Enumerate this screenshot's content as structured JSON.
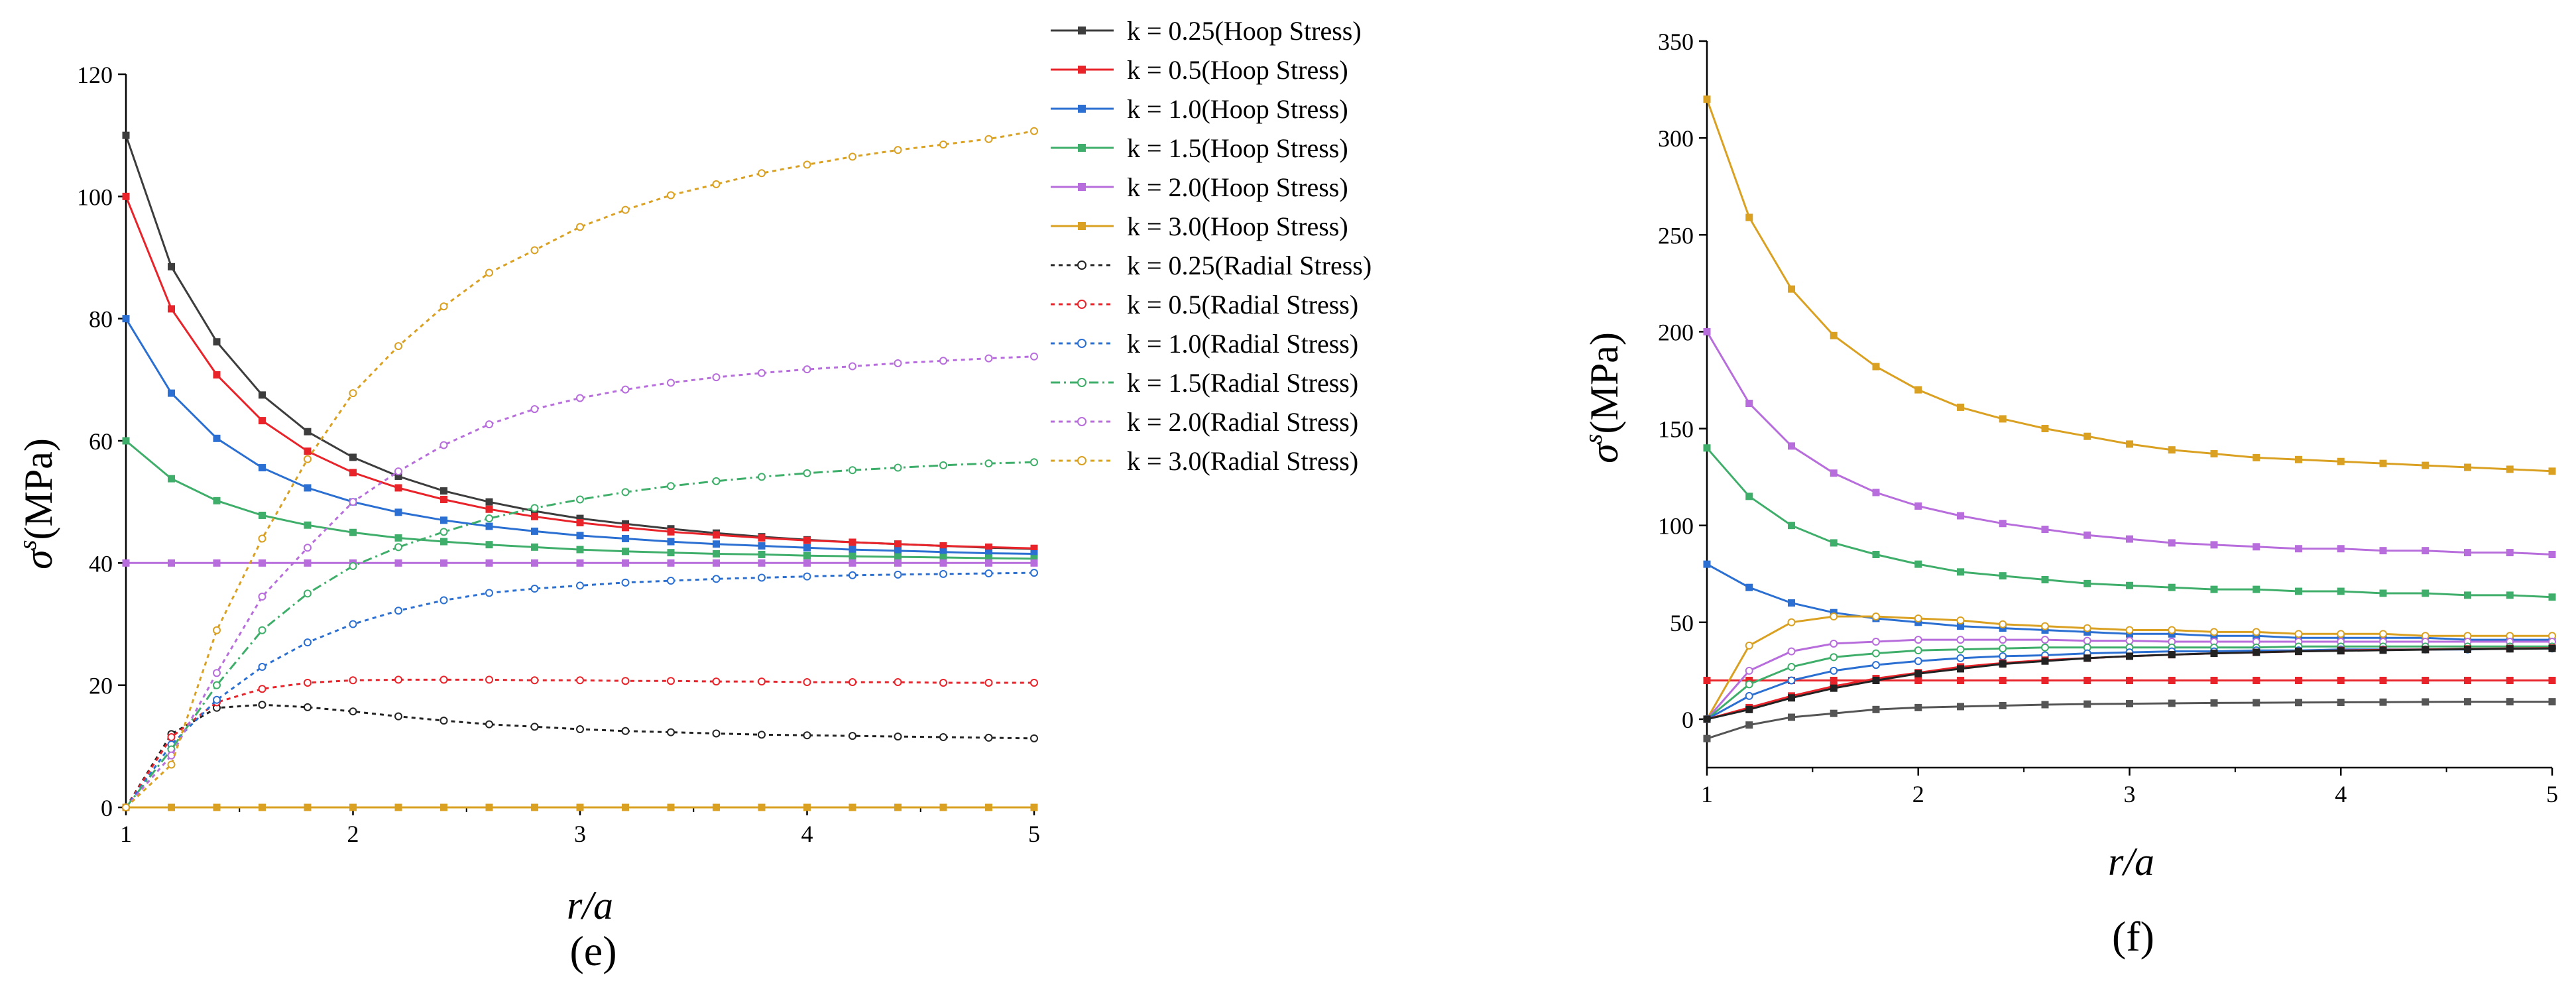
{
  "chart_data": [
    {
      "type": "line",
      "panel": "(e)",
      "xlabel_var": "r",
      "xlabel_den": "a",
      "ylabel_sym": "σ",
      "ylabel_sup": "s",
      "ylabel_unit": "(MPa)",
      "xlim": [
        1,
        5
      ],
      "ylim": [
        0,
        120
      ],
      "xticks": [
        "1",
        "2",
        "3",
        "4",
        "5"
      ],
      "yticks": [
        "0",
        "20",
        "40",
        "60",
        "80",
        "100",
        "120"
      ],
      "legend_position": "top-right, outside plot",
      "series": [
        {
          "k": "0.25",
          "label": "k = 0.25(Hoop Stress)",
          "kind": "hoop",
          "color": "#3d3d3d",
          "values": [
            110,
            88.5,
            76.2,
            67.5,
            61.5,
            57.3,
            54.2,
            51.8,
            50.0,
            48.5,
            47.3,
            46.4,
            45.6,
            44.9,
            44.3,
            43.8,
            43.4,
            43.1,
            42.8,
            42.5,
            42.3
          ]
        },
        {
          "k": "0.5",
          "label": "k = 0.5(Hoop Stress)",
          "kind": "hoop",
          "color": "#e8232a",
          "values": [
            100,
            81.6,
            70.8,
            63.3,
            58.3,
            54.8,
            52.3,
            50.4,
            48.8,
            47.6,
            46.6,
            45.8,
            45.1,
            44.6,
            44.1,
            43.7,
            43.4,
            43.1,
            42.8,
            42.6,
            42.4
          ]
        },
        {
          "k": "1.0",
          "label": "k = 1.0(Hoop Stress)",
          "kind": "hoop",
          "color": "#2a6fd1",
          "values": [
            80,
            67.8,
            60.4,
            55.6,
            52.3,
            50.0,
            48.3,
            47.0,
            46.0,
            45.2,
            44.5,
            44.0,
            43.5,
            43.1,
            42.8,
            42.5,
            42.2,
            42.0,
            41.8,
            41.6,
            41.5
          ]
        },
        {
          "k": "1.5",
          "label": "k = 1.5(Hoop Stress)",
          "kind": "hoop",
          "color": "#3fae6a",
          "values": [
            60,
            53.8,
            50.2,
            47.8,
            46.2,
            45.0,
            44.1,
            43.5,
            43.0,
            42.6,
            42.2,
            41.9,
            41.7,
            41.5,
            41.4,
            41.2,
            41.1,
            41.0,
            40.9,
            40.8,
            40.7
          ]
        },
        {
          "k": "2.0",
          "label": "k = 2.0(Hoop Stress)",
          "kind": "hoop",
          "color": "#b76ddb",
          "values": [
            40,
            40,
            40,
            40,
            40,
            40,
            40,
            40,
            40,
            40,
            40,
            40,
            40,
            40,
            40,
            40,
            40,
            40,
            40,
            40,
            40
          ]
        },
        {
          "k": "3.0",
          "label": "k = 3.0(Hoop Stress)",
          "kind": "hoop",
          "color": "#d9a021",
          "values": [
            0,
            0,
            0,
            0,
            0,
            0,
            0,
            0,
            0,
            0,
            0,
            0,
            0,
            0,
            0,
            0,
            0,
            0,
            0,
            0,
            0
          ]
        },
        {
          "k": "0.25",
          "label": "k = 0.25(Radial Stress)",
          "kind": "radial",
          "color": "#222222",
          "values": [
            0,
            12.0,
            16.3,
            16.8,
            16.4,
            15.7,
            14.9,
            14.2,
            13.6,
            13.2,
            12.8,
            12.5,
            12.3,
            12.1,
            11.9,
            11.8,
            11.7,
            11.6,
            11.5,
            11.4,
            11.3
          ]
        },
        {
          "k": "0.5",
          "label": "k = 0.5(Radial Stress)",
          "kind": "radial",
          "color": "#e8232a",
          "values": [
            0,
            11.5,
            17.2,
            19.4,
            20.4,
            20.8,
            20.9,
            20.9,
            20.9,
            20.8,
            20.8,
            20.7,
            20.7,
            20.6,
            20.6,
            20.5,
            20.5,
            20.5,
            20.4,
            20.4,
            20.4
          ]
        },
        {
          "k": "1.0",
          "label": "k = 1.0(Radial Stress)",
          "kind": "radial",
          "color": "#2a6fd1",
          "values": [
            0,
            10.3,
            17.6,
            23.0,
            27.0,
            30.0,
            32.2,
            33.9,
            35.1,
            35.8,
            36.3,
            36.8,
            37.1,
            37.4,
            37.6,
            37.8,
            38.0,
            38.1,
            38.2,
            38.3,
            38.4
          ]
        },
        {
          "k": "1.5",
          "label": "k = 1.5(Radial Stress)",
          "kind": "radial",
          "color": "#3fae6a",
          "values": [
            0,
            9.5,
            20.0,
            29.0,
            35.0,
            39.5,
            42.6,
            45.1,
            47.3,
            49.0,
            50.4,
            51.6,
            52.6,
            53.4,
            54.1,
            54.7,
            55.2,
            55.6,
            56.0,
            56.3,
            56.5
          ]
        },
        {
          "k": "2.0",
          "label": "k = 2.0(Radial Stress)",
          "kind": "radial",
          "color": "#b76ddb",
          "values": [
            0,
            8.5,
            22.0,
            34.5,
            42.5,
            50.0,
            55.0,
            59.3,
            62.7,
            65.2,
            67.0,
            68.4,
            69.5,
            70.4,
            71.1,
            71.7,
            72.2,
            72.7,
            73.1,
            73.5,
            73.8
          ]
        },
        {
          "k": "3.0",
          "label": "k = 3.0(Radial Stress)",
          "kind": "radial",
          "color": "#d9a021",
          "values": [
            0,
            7.0,
            29.0,
            44.0,
            57.0,
            67.8,
            75.5,
            82.0,
            87.5,
            91.2,
            95.0,
            97.8,
            100.2,
            102.0,
            103.8,
            105.2,
            106.5,
            107.6,
            108.5,
            109.4,
            110.7
          ]
        }
      ]
    },
    {
      "type": "line",
      "panel": "(f)",
      "xlabel_var": "r",
      "xlabel_den": "a",
      "ylabel_sym": "σ",
      "ylabel_sup": "s",
      "ylabel_unit": "(MPa)",
      "xlim": [
        1,
        5
      ],
      "ylim": [
        -25,
        350
      ],
      "xticks": [
        "1",
        "2",
        "3",
        "4",
        "5"
      ],
      "yticks": [
        "0",
        "50",
        "100",
        "150",
        "200",
        "250",
        "300",
        "350"
      ],
      "series": [
        {
          "color": "#d9a021",
          "marker": "filled",
          "values": [
            320,
            259,
            222,
            198,
            182,
            170,
            161,
            155,
            150,
            146,
            142,
            139,
            137,
            135,
            134,
            133,
            132,
            131,
            130,
            129,
            128
          ]
        },
        {
          "color": "#b76ddb",
          "marker": "filled",
          "values": [
            200,
            163,
            141,
            127,
            117,
            110,
            105,
            101,
            98,
            95,
            93,
            91,
            90,
            89,
            88,
            88,
            87,
            87,
            86,
            86,
            85
          ]
        },
        {
          "color": "#3fae6a",
          "marker": "filled",
          "values": [
            140,
            115,
            100,
            91,
            85,
            80,
            76,
            74,
            72,
            70,
            69,
            68,
            67,
            67,
            66,
            66,
            65,
            65,
            64,
            64,
            63
          ]
        },
        {
          "color": "#2a6fd1",
          "marker": "filled",
          "values": [
            80,
            68,
            60,
            55,
            52,
            50,
            48,
            47,
            46,
            45,
            44,
            44,
            43,
            43,
            42,
            42,
            42,
            42,
            41,
            41,
            41
          ]
        },
        {
          "color": "#e8232a",
          "marker": "filled",
          "values": [
            20,
            20,
            20,
            20,
            20,
            20,
            20,
            20,
            20,
            20,
            20,
            20,
            20,
            20,
            20,
            20,
            20,
            20,
            20,
            20,
            20
          ]
        },
        {
          "color": "#555555",
          "marker": "filled",
          "values": [
            -10,
            -3,
            1,
            3,
            5,
            6,
            6.5,
            7,
            7.5,
            7.8,
            8,
            8.2,
            8.4,
            8.5,
            8.6,
            8.7,
            8.8,
            8.9,
            9,
            9,
            9
          ]
        },
        {
          "color": "#d9a021",
          "marker": "open",
          "values": [
            0,
            38,
            50,
            53,
            53,
            52,
            51,
            49,
            48,
            47,
            46,
            46,
            45,
            45,
            44,
            44,
            44,
            43,
            43,
            43,
            43
          ]
        },
        {
          "color": "#b76ddb",
          "marker": "open",
          "values": [
            0,
            25,
            35,
            39,
            40,
            41,
            41,
            41,
            41,
            40.5,
            40.5,
            40,
            40,
            40,
            40,
            40,
            40,
            40,
            40,
            40,
            40
          ]
        },
        {
          "color": "#3fae6a",
          "marker": "open",
          "values": [
            0,
            18,
            27,
            32,
            34,
            35.5,
            36,
            36.5,
            37,
            37,
            37,
            37,
            37,
            37,
            37.5,
            37.5,
            37.5,
            37.5,
            37.5,
            37.5,
            37.5
          ]
        },
        {
          "color": "#2a6fd1",
          "marker": "open",
          "values": [
            0,
            12,
            20,
            25,
            28,
            30,
            31.5,
            32.5,
            33,
            34,
            34.5,
            35,
            35,
            35.5,
            35.5,
            36,
            36,
            36,
            36,
            36.5,
            36.5
          ]
        },
        {
          "color": "#e8232a",
          "marker": "filled",
          "values": [
            0,
            6,
            12,
            17,
            21,
            24,
            27,
            29,
            30.5,
            31.5,
            32.5,
            33.3,
            34,
            34.5,
            35,
            35.5,
            35.8,
            36,
            36.3,
            36.5,
            36.7
          ]
        },
        {
          "color": "#222222",
          "marker": "filled",
          "values": [
            0,
            5,
            11,
            16,
            20,
            23.5,
            26,
            28.5,
            30,
            31.5,
            32.5,
            33.3,
            34,
            34.5,
            35,
            35.3,
            35.6,
            35.9,
            36.1,
            36.3,
            36.5
          ]
        }
      ]
    }
  ]
}
